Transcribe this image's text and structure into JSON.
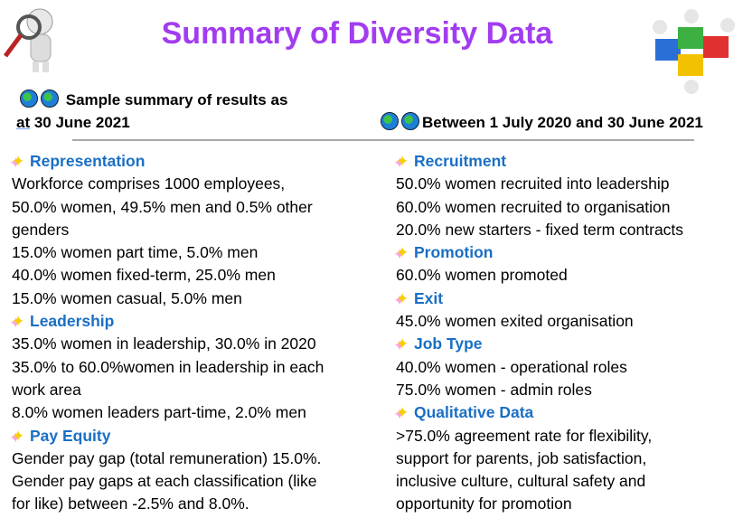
{
  "title": "Summary of Diversity Data",
  "left_header": {
    "line1": "Sample summary of results as",
    "line2_underlined": "at",
    "line2_rest": " 30 June 2021"
  },
  "right_header": "Between 1 July 2020 and 30 June 2021",
  "left_sections": [
    {
      "heading": "Representation",
      "lines": [
        "Workforce comprises 1000 employees,",
        "50.0% women, 49.5% men and 0.5% other",
        "genders",
        "15.0% women part time, 5.0% men",
        "40.0% women fixed-term, 25.0% men",
        "15.0% women casual, 5.0% men"
      ]
    },
    {
      "heading": "Leadership",
      "lines": [
        "35.0% women in leadership, 30.0% in 2020",
        "35.0% to 60.0%women in leadership in each",
        "work area",
        "8.0% women leaders part-time, 2.0% men"
      ]
    },
    {
      "heading": "Pay Equity",
      "lines": [
        "Gender pay gap (total remuneration) 15.0%.",
        "Gender pay gaps at each classification (like",
        "for like) between -2.5% and 8.0%."
      ]
    }
  ],
  "right_sections": [
    {
      "heading": "Recruitment",
      "lines": [
        "50.0% women recruited into leadership",
        "60.0% women recruited to organisation",
        "20.0% new starters - fixed term contracts"
      ]
    },
    {
      "heading": "Promotion",
      "lines": [
        "60.0% women promoted"
      ]
    },
    {
      "heading": "Exit",
      "lines": [
        "45.0% women exited organisation"
      ]
    },
    {
      "heading": "Job Type",
      "lines": [
        "40.0% women - operational roles",
        "75.0% women - admin roles"
      ]
    },
    {
      "heading": "Qualitative Data",
      "lines": [
        ">75.0% agreement rate for flexibility,",
        "support for parents, job satisfaction,",
        "inclusive culture, cultural safety and",
        "opportunity for promotion"
      ]
    }
  ],
  "colors": {
    "title": "#a23cf0",
    "heading": "#1a6fc4",
    "rule": "#a8a8a8"
  },
  "icons": {
    "header": "globe-icon",
    "section": "sparkles-icon",
    "top_left": "magnifier-figure-icon",
    "top_right": "puzzle-team-icon"
  }
}
